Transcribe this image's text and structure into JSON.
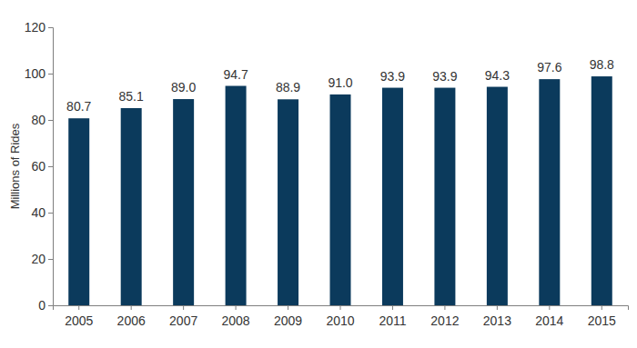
{
  "chart_data": {
    "type": "bar",
    "y_label": "Millions of Rides",
    "categories": [
      "2005",
      "2006",
      "2007",
      "2008",
      "2009",
      "2010",
      "2011",
      "2012",
      "2013",
      "2014",
      "2015"
    ],
    "values": [
      80.7,
      85.1,
      89.0,
      94.7,
      88.9,
      91.0,
      93.9,
      93.9,
      94.3,
      97.6,
      98.8
    ],
    "value_labels": [
      "80.7",
      "85.1",
      "89.0",
      "94.7",
      "88.9",
      "91.0",
      "93.9",
      "93.9",
      "94.3",
      "97.6",
      "98.8"
    ],
    "color": "#0b3a5c",
    "ylim": [
      0,
      120
    ],
    "yticks": [
      0,
      20,
      40,
      60,
      80,
      100,
      120
    ],
    "grid": false,
    "data_labels": true
  }
}
